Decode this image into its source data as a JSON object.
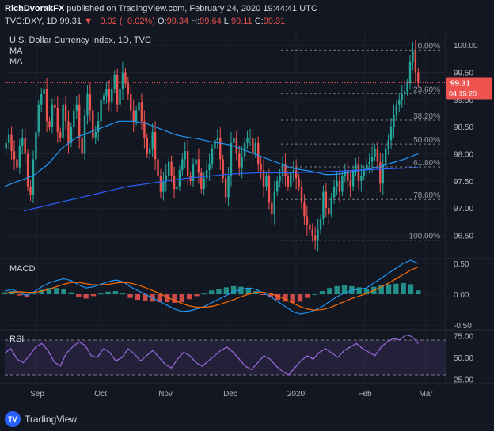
{
  "header": {
    "author": "RichDvorakFX",
    "published_text": "published on TradingView.com, February 24, 2020 19:44:41 UTC",
    "symbol": "TVC:DXY, 1D",
    "last": "99.31",
    "change": "−0.02 (−0.02%)",
    "o_label": "O:",
    "o": "99.34",
    "h_label": "H:",
    "h": "99.64",
    "l_label": "L:",
    "l": "99.11",
    "c_label": "C:",
    "c": "99.31"
  },
  "footer": {
    "logo_text": "TV",
    "brand": "TradingView"
  },
  "colors": {
    "up": "#26a69a",
    "down": "#ef5350",
    "ma_fast": "#2196f3",
    "ma_slow": "#2962ff",
    "macd": "#2196f3",
    "signal": "#ff6d00",
    "rsi": "#9c6ade",
    "price_line": "#ef5350",
    "fib": "#787b86",
    "background": "#131722",
    "grid": "#1e222d"
  },
  "chart_data": [
    {
      "type": "candlestick",
      "title": "U.S. Dollar Currency Index, 1D, TVC",
      "indicators": [
        "MA",
        "MA"
      ],
      "ylim": [
        96.1,
        100.25
      ],
      "y_ticks": [
        "100.00",
        "99.50",
        "99.00",
        "98.50",
        "98.00",
        "97.50",
        "97.00",
        "96.50"
      ],
      "x_ticks": [
        "Sep",
        "Oct",
        "Nov",
        "Dec",
        "2020",
        "Feb",
        "Mar"
      ],
      "last_price": {
        "value": 99.31,
        "label": "99.31",
        "countdown": "04:15:20"
      },
      "fib_levels": [
        {
          "label": "0.00%",
          "value": 99.91
        },
        {
          "label": "23.60%",
          "value": 99.11
        },
        {
          "label": "38.20%",
          "value": 98.62
        },
        {
          "label": "50.00%",
          "value": 98.18
        },
        {
          "label": "61.80%",
          "value": 97.76
        },
        {
          "label": "78.60%",
          "value": 97.16
        },
        {
          "label": "100.00%",
          "value": 96.41
        }
      ],
      "close_series": [
        98.2,
        98.35,
        98.05,
        97.9,
        97.75,
        98.15,
        98.3,
        98.0,
        97.4,
        97.25,
        97.9,
        98.4,
        98.9,
        99.1,
        99.2,
        98.6,
        98.5,
        98.9,
        98.85,
        98.4,
        98.3,
        98.9,
        98.6,
        98.2,
        98.5,
        98.8,
        98.9,
        98.3,
        98.0,
        98.7,
        99.1,
        98.8,
        98.3,
        98.4,
        98.6,
        99.0,
        99.05,
        99.2,
        98.95,
        99.2,
        99.45,
        98.9,
        99.2,
        99.5,
        99.3,
        99.1,
        98.8,
        98.6,
        98.8,
        98.95,
        98.6,
        98.3,
        98.0,
        98.1,
        98.4,
        97.9,
        97.6,
        97.3,
        97.5,
        97.6,
        97.85,
        97.6,
        97.35,
        97.4,
        97.7,
        97.9,
        98.05,
        97.6,
        97.5,
        97.8,
        97.9,
        97.65,
        97.35,
        97.55,
        97.7,
        97.8,
        98.1,
        98.25,
        98.3,
        97.9,
        97.55,
        97.2,
        97.6,
        98.2,
        98.3,
        98.0,
        97.75,
        97.95,
        98.2,
        98.3,
        98.3,
        98.0,
        98.2,
        97.8,
        97.7,
        97.4,
        97.6,
        97.1,
        96.9,
        97.3,
        97.5,
        97.6,
        97.8,
        97.6,
        97.4,
        97.65,
        97.7,
        97.55,
        97.4,
        97.1,
        96.85,
        96.7,
        96.6,
        96.5,
        96.4,
        96.6,
        96.8,
        97.3,
        97.0,
        96.9,
        97.2,
        97.4,
        97.5,
        97.3,
        97.6,
        97.7,
        97.5,
        97.4,
        97.7,
        97.8,
        97.5,
        97.6,
        97.7,
        97.8,
        97.85,
        97.95,
        98.1,
        97.85,
        97.45,
        97.8,
        98.1,
        98.25,
        98.5,
        98.7,
        98.9,
        99.0,
        99.1,
        99.15,
        99.3,
        99.7,
        99.9,
        99.5,
        99.31
      ],
      "ma_fast": [
        97.4,
        97.45,
        97.5,
        97.55,
        97.6,
        97.7,
        97.8,
        97.95,
        98.1,
        98.2,
        98.3,
        98.35,
        98.4,
        98.45,
        98.5,
        98.55,
        98.6,
        98.6,
        98.6,
        98.58,
        98.55,
        98.5,
        98.45,
        98.4,
        98.35,
        98.32,
        98.3,
        98.28,
        98.25,
        98.22,
        98.2,
        98.18,
        98.15,
        98.1,
        98.05,
        98.0,
        97.95,
        97.9,
        97.85,
        97.8,
        97.75,
        97.72,
        97.7,
        97.68,
        97.65,
        97.62,
        97.62,
        97.63,
        97.65,
        97.68,
        97.7,
        97.72,
        97.75,
        97.78,
        97.82,
        97.86,
        97.9,
        97.95,
        98.0
      ],
      "ma_slow": [
        96.95,
        97.0,
        97.05,
        97.1,
        97.15,
        97.2,
        97.25,
        97.3,
        97.35,
        97.4,
        97.43,
        97.46,
        97.49,
        97.52,
        97.55,
        97.57,
        97.59,
        97.61,
        97.63,
        97.64,
        97.65,
        97.65,
        97.65,
        97.65,
        97.66,
        97.66,
        97.67,
        97.68,
        97.69,
        97.7,
        97.71,
        97.72,
        97.73,
        97.74,
        97.75
      ]
    },
    {
      "type": "histogram+line",
      "title": "MACD",
      "ylim": [
        -0.55,
        0.55
      ],
      "y_ticks": [
        "0.50",
        "0.00",
        "-0.50"
      ],
      "macd": [
        0.05,
        0.08,
        0.02,
        -0.02,
        0.04,
        0.12,
        0.18,
        0.22,
        0.25,
        0.22,
        0.15,
        0.1,
        0.12,
        0.16,
        0.2,
        0.23,
        0.2,
        0.12,
        0.06,
        0.0,
        -0.06,
        -0.12,
        -0.18,
        -0.24,
        -0.28,
        -0.27,
        -0.24,
        -0.2,
        -0.14,
        -0.08,
        -0.02,
        0.04,
        0.08,
        0.1,
        0.08,
        0.02,
        -0.04,
        -0.12,
        -0.2,
        -0.28,
        -0.32,
        -0.3,
        -0.26,
        -0.2,
        -0.12,
        -0.04,
        0.02,
        0.06,
        0.08,
        0.1,
        0.18,
        0.26,
        0.34,
        0.42,
        0.5,
        0.55,
        0.5
      ],
      "signal": [
        0.02,
        0.03,
        0.04,
        0.03,
        0.03,
        0.05,
        0.08,
        0.12,
        0.16,
        0.19,
        0.19,
        0.17,
        0.15,
        0.15,
        0.16,
        0.18,
        0.19,
        0.18,
        0.15,
        0.11,
        0.06,
        0.01,
        -0.05,
        -0.1,
        -0.15,
        -0.19,
        -0.21,
        -0.21,
        -0.2,
        -0.17,
        -0.13,
        -0.09,
        -0.04,
        0.0,
        0.03,
        0.03,
        0.01,
        -0.03,
        -0.08,
        -0.14,
        -0.2,
        -0.24,
        -0.26,
        -0.25,
        -0.22,
        -0.17,
        -0.12,
        -0.07,
        -0.03,
        0.01,
        0.06,
        0.12,
        0.18,
        0.25,
        0.32,
        0.39,
        0.44
      ]
    },
    {
      "type": "line",
      "title": "RSI",
      "ylim": [
        20,
        80
      ],
      "y_ticks": [
        "75.00",
        "50.00",
        "25.00"
      ],
      "bands": [
        70,
        30
      ],
      "rsi": [
        55,
        60,
        48,
        44,
        52,
        62,
        66,
        58,
        45,
        40,
        55,
        62,
        68,
        64,
        52,
        50,
        60,
        56,
        46,
        50,
        60,
        54,
        46,
        52,
        58,
        50,
        42,
        38,
        48,
        56,
        52,
        44,
        40,
        46,
        52,
        58,
        62,
        56,
        48,
        40,
        36,
        44,
        52,
        48,
        40,
        34,
        30,
        38,
        46,
        52,
        48,
        56,
        60,
        55,
        50,
        58,
        62,
        66,
        60,
        56,
        52,
        62,
        68,
        72,
        70,
        76,
        74,
        66
      ]
    }
  ]
}
